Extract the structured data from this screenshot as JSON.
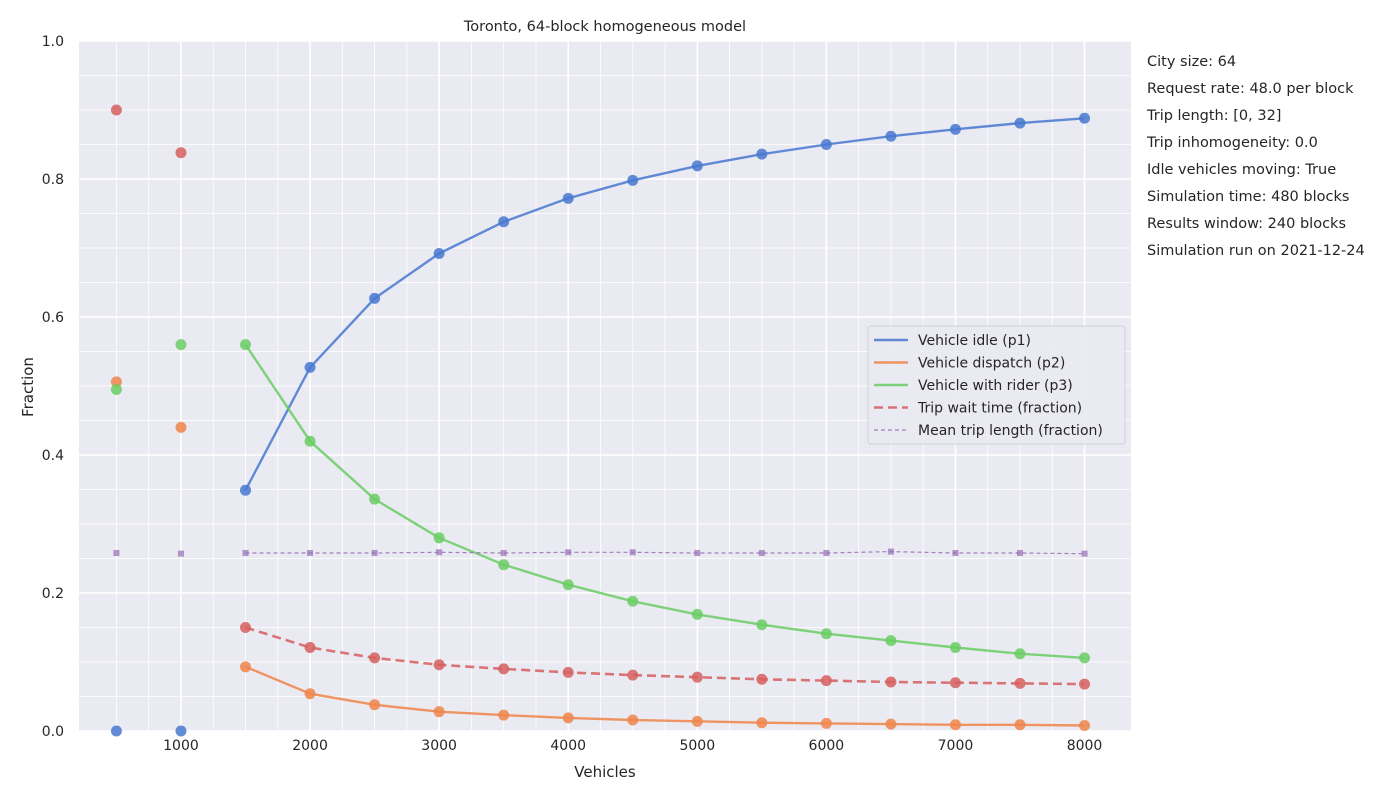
{
  "chart_data": {
    "type": "line",
    "title": "Toronto, 64-block homogeneous model",
    "xlabel": "Vehicles",
    "ylabel": "Fraction",
    "xlim": [
      210,
      8360
    ],
    "ylim": [
      0,
      1
    ],
    "xticks": [
      1000,
      2000,
      3000,
      4000,
      5000,
      6000,
      7000,
      8000
    ],
    "yticks": [
      0,
      0.2,
      0.4,
      0.6,
      0.8,
      1.0
    ],
    "ytick_labels": [
      "0.0",
      "0.2",
      "0.4",
      "0.6",
      "0.8",
      "1.0"
    ],
    "grid": true,
    "legend_position": "center-right",
    "x": [
      500,
      1000,
      1500,
      2000,
      2500,
      3000,
      3500,
      4000,
      4500,
      5000,
      5500,
      6000,
      6500,
      7000,
      7500,
      8000
    ],
    "fit_start_index": 2,
    "series": [
      {
        "name": "Vehicle idle (p1)",
        "color": "#4878d0",
        "style": "solid",
        "marker": "circle",
        "values": [
          0.0,
          0.0,
          0.349,
          0.527,
          0.627,
          0.692,
          0.738,
          0.772,
          0.798,
          0.819,
          0.836,
          0.85,
          0.862,
          0.872,
          0.881,
          0.888
        ]
      },
      {
        "name": "Vehicle dispatch (p2)",
        "color": "#ee854a",
        "style": "solid",
        "marker": "circle",
        "values": [
          0.506,
          0.44,
          0.093,
          0.054,
          0.038,
          0.028,
          0.023,
          0.019,
          0.016,
          0.014,
          0.012,
          0.011,
          0.01,
          0.009,
          0.009,
          0.008
        ]
      },
      {
        "name": "Vehicle with rider (p3)",
        "color": "#6acc64",
        "style": "solid",
        "marker": "circle",
        "values": [
          0.495,
          0.56,
          0.56,
          0.42,
          0.336,
          0.28,
          0.241,
          0.212,
          0.188,
          0.169,
          0.154,
          0.141,
          0.131,
          0.121,
          0.112,
          0.106
        ]
      },
      {
        "name": "Trip wait time (fraction)",
        "color": "#d65f5f",
        "style": "dashed",
        "marker": "circle",
        "values": [
          0.9,
          0.838,
          0.15,
          0.121,
          0.106,
          0.096,
          0.09,
          0.085,
          0.081,
          0.078,
          0.075,
          0.073,
          0.071,
          0.07,
          0.069,
          0.068
        ]
      },
      {
        "name": "Mean trip length (fraction)",
        "color": "#956cb4",
        "style": "thin-dashed",
        "marker": "square",
        "values": [
          0.258,
          0.257,
          0.258,
          0.258,
          0.258,
          0.259,
          0.258,
          0.259,
          0.259,
          0.258,
          0.258,
          0.258,
          0.26,
          0.258,
          0.258,
          0.257
        ]
      }
    ]
  },
  "info": {
    "lines": [
      "City size: 64",
      "Request rate: 48.0 per block",
      "Trip length: [0, 32]",
      "Trip inhomogeneity: 0.0",
      "Idle vehicles moving: True",
      "Simulation time: 480 blocks",
      "Results window: 240 blocks",
      "Simulation run on 2021-12-24"
    ]
  }
}
